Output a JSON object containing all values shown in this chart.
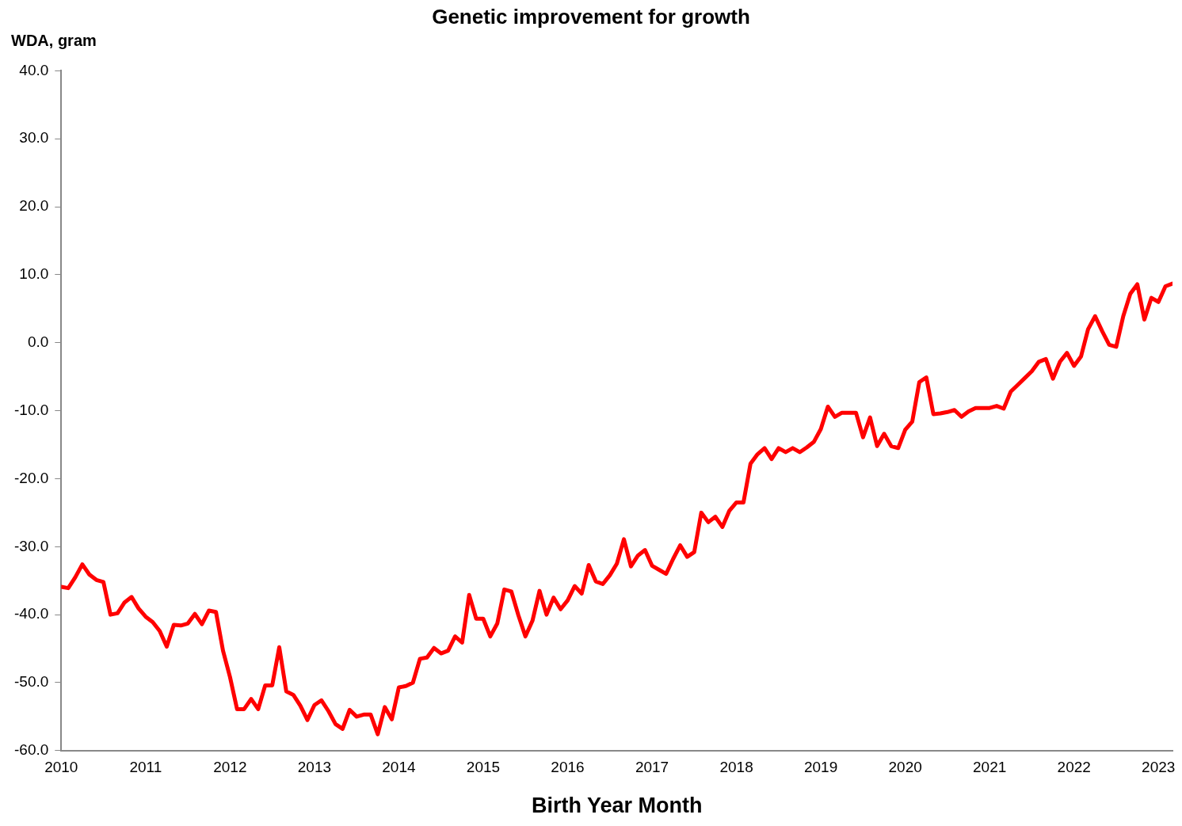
{
  "chart_data": {
    "type": "line",
    "title": "Genetic improvement for growth",
    "ylabel": "WDA, gram",
    "xlabel": "Birth Year Month",
    "x": [
      "2010-01",
      "2010-02",
      "2010-03",
      "2010-04",
      "2010-05",
      "2010-06",
      "2010-07",
      "2010-08",
      "2010-09",
      "2010-10",
      "2010-11",
      "2010-12",
      "2011-01",
      "2011-02",
      "2011-03",
      "2011-04",
      "2011-05",
      "2011-06",
      "2011-07",
      "2011-08",
      "2011-09",
      "2011-10",
      "2011-11",
      "2011-12",
      "2012-01",
      "2012-02",
      "2012-03",
      "2012-04",
      "2012-05",
      "2012-06",
      "2012-07",
      "2012-08",
      "2012-09",
      "2012-10",
      "2012-11",
      "2012-12",
      "2013-01",
      "2013-02",
      "2013-03",
      "2013-04",
      "2013-05",
      "2013-06",
      "2013-07",
      "2013-08",
      "2013-09",
      "2013-10",
      "2013-11",
      "2013-12",
      "2014-01",
      "2014-02",
      "2014-03",
      "2014-04",
      "2014-05",
      "2014-06",
      "2014-07",
      "2014-08",
      "2014-09",
      "2014-10",
      "2014-11",
      "2014-12",
      "2015-01",
      "2015-02",
      "2015-03",
      "2015-04",
      "2015-05",
      "2015-06",
      "2015-07",
      "2015-08",
      "2015-09",
      "2015-10",
      "2015-11",
      "2015-12",
      "2016-01",
      "2016-02",
      "2016-03",
      "2016-04",
      "2016-05",
      "2016-06",
      "2016-07",
      "2016-08",
      "2016-09",
      "2016-10",
      "2016-11",
      "2016-12",
      "2017-01",
      "2017-02",
      "2017-03",
      "2017-04",
      "2017-05",
      "2017-06",
      "2017-07",
      "2017-08",
      "2017-09",
      "2017-10",
      "2017-11",
      "2017-12",
      "2018-01",
      "2018-02",
      "2018-03",
      "2018-04",
      "2018-05",
      "2018-06",
      "2018-07",
      "2018-08",
      "2018-09",
      "2018-10",
      "2018-11",
      "2018-12",
      "2019-01",
      "2019-02",
      "2019-03",
      "2019-04",
      "2019-05",
      "2019-06",
      "2019-07",
      "2019-08",
      "2019-09",
      "2019-10",
      "2019-11",
      "2019-12",
      "2020-01",
      "2020-02",
      "2020-03",
      "2020-04",
      "2020-05",
      "2020-06",
      "2020-07",
      "2020-08",
      "2020-09",
      "2020-10",
      "2020-11",
      "2020-12",
      "2021-01",
      "2021-02",
      "2021-03",
      "2021-04",
      "2021-05",
      "2021-06",
      "2021-07",
      "2021-08",
      "2021-09",
      "2021-10",
      "2021-11",
      "2021-12",
      "2022-01",
      "2022-02",
      "2022-03",
      "2022-04",
      "2022-05",
      "2022-06",
      "2022-07",
      "2022-08",
      "2022-09",
      "2022-10",
      "2022-11",
      "2022-12",
      "2023-01",
      "2023-02",
      "2023-03"
    ],
    "series": [
      {
        "color": "#ff0000",
        "values": [
          -35.9,
          -36.1,
          -34.5,
          -32.6,
          -34.1,
          -34.9,
          -35.2,
          -40.0,
          -39.8,
          -38.2,
          -37.4,
          -39.1,
          -40.3,
          -41.1,
          -42.4,
          -44.7,
          -41.5,
          -41.6,
          -41.3,
          -39.9,
          -41.4,
          -39.4,
          -39.6,
          -45.3,
          -49.2,
          -53.9,
          -53.9,
          -52.4,
          -53.9,
          -50.4,
          -50.4,
          -44.8,
          -51.3,
          -51.8,
          -53.4,
          -55.5,
          -53.3,
          -52.6,
          -54.2,
          -56.1,
          -56.8,
          -54.0,
          -55.0,
          -54.7,
          -54.7,
          -57.6,
          -53.6,
          -55.4,
          -50.7,
          -50.5,
          -50.0,
          -46.5,
          -46.3,
          -44.9,
          -45.7,
          -45.3,
          -43.2,
          -44.1,
          -37.1,
          -40.6,
          -40.6,
          -43.2,
          -41.3,
          -36.3,
          -36.6,
          -40.1,
          -43.2,
          -40.9,
          -36.5,
          -40.0,
          -37.5,
          -39.2,
          -37.9,
          -35.8,
          -36.9,
          -32.7,
          -35.1,
          -35.5,
          -34.2,
          -32.5,
          -28.9,
          -32.9,
          -31.3,
          -30.5,
          -32.8,
          -33.4,
          -34.0,
          -31.8,
          -29.8,
          -31.5,
          -30.8,
          -25.0,
          -26.4,
          -25.6,
          -27.1,
          -24.7,
          -23.5,
          -23.5,
          -17.8,
          -16.4,
          -15.5,
          -17.1,
          -15.5,
          -16.1,
          -15.5,
          -16.1,
          -15.4,
          -14.6,
          -12.7,
          -9.4,
          -10.9,
          -10.3,
          -10.3,
          -10.3,
          -13.9,
          -11.0,
          -15.2,
          -13.4,
          -15.2,
          -15.5,
          -12.8,
          -11.6,
          -5.8,
          -5.1,
          -10.5,
          -10.4,
          -10.2,
          -9.9,
          -10.9,
          -10.1,
          -9.6,
          -9.6,
          -9.6,
          -9.3,
          -9.7,
          -7.2,
          -6.2,
          -5.2,
          -4.2,
          -2.8,
          -2.4,
          -5.3,
          -2.8,
          -1.5,
          -3.4,
          -2.0,
          2.0,
          3.9,
          1.7,
          -0.3,
          -0.6,
          3.9,
          7.2,
          8.6,
          3.4,
          6.6,
          6.0,
          8.3,
          8.7
        ]
      }
    ],
    "xlim": [
      "2010-01",
      "2023-03"
    ],
    "xticks": [
      {
        "value": "2010",
        "label": "2010"
      },
      {
        "value": "2011",
        "label": "2011"
      },
      {
        "value": "2012",
        "label": "2012"
      },
      {
        "value": "2013",
        "label": "2013"
      },
      {
        "value": "2014",
        "label": "2014"
      },
      {
        "value": "2015",
        "label": "2015"
      },
      {
        "value": "2016",
        "label": "2016"
      },
      {
        "value": "2017",
        "label": "2017"
      },
      {
        "value": "2018",
        "label": "2018"
      },
      {
        "value": "2019",
        "label": "2019"
      },
      {
        "value": "2020",
        "label": "2020"
      },
      {
        "value": "2021",
        "label": "2021"
      },
      {
        "value": "2022",
        "label": "2022"
      },
      {
        "value": "2023",
        "label": "2023"
      }
    ],
    "ylim": [
      -60,
      40
    ],
    "yticks": [
      {
        "value": -60,
        "label": "-60.0"
      },
      {
        "value": -50,
        "label": "-50.0"
      },
      {
        "value": -40,
        "label": "-40.0"
      },
      {
        "value": -30,
        "label": "-30.0"
      },
      {
        "value": -20,
        "label": "-20.0"
      },
      {
        "value": -10,
        "label": "-10.0"
      },
      {
        "value": 0,
        "label": "0.0"
      },
      {
        "value": 10,
        "label": "10.0"
      },
      {
        "value": 20,
        "label": "20.0"
      },
      {
        "value": 30,
        "label": "30.0"
      },
      {
        "value": 40,
        "label": "40.0"
      }
    ],
    "grid": false,
    "legend": false,
    "marker": "none",
    "line_style": "solid"
  }
}
